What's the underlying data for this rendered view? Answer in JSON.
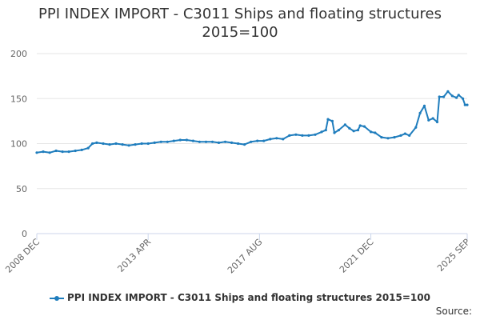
{
  "chart_data": {
    "type": "line",
    "title_line1": "PPI INDEX IMPORT - C3011 Ships and floating structures",
    "title_line2": "2015=100",
    "xlabel": "",
    "ylabel": "",
    "ylim": [
      0,
      200
    ],
    "yticks": [
      0,
      50,
      100,
      150,
      200
    ],
    "x_range": [
      "2008-12",
      "2025-09"
    ],
    "xtick_labels": [
      {
        "date": "2008-12",
        "label": "2008 DEC"
      },
      {
        "date": "2013-04",
        "label": "2013 APR"
      },
      {
        "date": "2017-08",
        "label": "2017 AUG"
      },
      {
        "date": "2021-12",
        "label": "2021 DEC"
      },
      {
        "date": "2025-09",
        "label": "2025 SEP"
      }
    ],
    "grid": "horizontal",
    "legend_position": "bottom",
    "color": "#1f7dbd",
    "series": [
      {
        "name": "PPI INDEX IMPORT - C3011 Ships and floating structures 2015=100",
        "points": [
          [
            "2008-12",
            90
          ],
          [
            "2009-03",
            91
          ],
          [
            "2009-06",
            90
          ],
          [
            "2009-09",
            92
          ],
          [
            "2009-12",
            91
          ],
          [
            "2010-03",
            91
          ],
          [
            "2010-06",
            92
          ],
          [
            "2010-09",
            93
          ],
          [
            "2010-12",
            95
          ],
          [
            "2011-02",
            100
          ],
          [
            "2011-04",
            101
          ],
          [
            "2011-07",
            100
          ],
          [
            "2011-10",
            99
          ],
          [
            "2012-01",
            100
          ],
          [
            "2012-04",
            99
          ],
          [
            "2012-07",
            98
          ],
          [
            "2012-10",
            99
          ],
          [
            "2013-01",
            100
          ],
          [
            "2013-04",
            100
          ],
          [
            "2013-07",
            101
          ],
          [
            "2013-10",
            102
          ],
          [
            "2014-01",
            102
          ],
          [
            "2014-04",
            103
          ],
          [
            "2014-07",
            104
          ],
          [
            "2014-10",
            104
          ],
          [
            "2015-01",
            103
          ],
          [
            "2015-04",
            102
          ],
          [
            "2015-07",
            102
          ],
          [
            "2015-10",
            102
          ],
          [
            "2016-01",
            101
          ],
          [
            "2016-04",
            102
          ],
          [
            "2016-07",
            101
          ],
          [
            "2016-10",
            100
          ],
          [
            "2017-01",
            99
          ],
          [
            "2017-04",
            102
          ],
          [
            "2017-07",
            103
          ],
          [
            "2017-10",
            103
          ],
          [
            "2018-01",
            105
          ],
          [
            "2018-04",
            106
          ],
          [
            "2018-07",
            105
          ],
          [
            "2018-10",
            109
          ],
          [
            "2019-01",
            110
          ],
          [
            "2019-04",
            109
          ],
          [
            "2019-07",
            109
          ],
          [
            "2019-10",
            110
          ],
          [
            "2020-01",
            113
          ],
          [
            "2020-03",
            115
          ],
          [
            "2020-04",
            127
          ],
          [
            "2020-06",
            125
          ],
          [
            "2020-07",
            112
          ],
          [
            "2020-09",
            115
          ],
          [
            "2020-12",
            121
          ],
          [
            "2021-02",
            117
          ],
          [
            "2021-04",
            114
          ],
          [
            "2021-06",
            115
          ],
          [
            "2021-07",
            120
          ],
          [
            "2021-09",
            119
          ],
          [
            "2021-12",
            113
          ],
          [
            "2022-02",
            112
          ],
          [
            "2022-05",
            107
          ],
          [
            "2022-08",
            106
          ],
          [
            "2022-11",
            107
          ],
          [
            "2023-02",
            109
          ],
          [
            "2023-04",
            111
          ],
          [
            "2023-06",
            109
          ],
          [
            "2023-09",
            118
          ],
          [
            "2023-11",
            134
          ],
          [
            "2024-01",
            142
          ],
          [
            "2024-03",
            126
          ],
          [
            "2024-05",
            128
          ],
          [
            "2024-07",
            124
          ],
          [
            "2024-08",
            152
          ],
          [
            "2024-10",
            152
          ],
          [
            "2024-12",
            158
          ],
          [
            "2025-02",
            153
          ],
          [
            "2025-04",
            151
          ],
          [
            "2025-05",
            154
          ],
          [
            "2025-07",
            150
          ],
          [
            "2025-08",
            143
          ],
          [
            "2025-09",
            143
          ]
        ]
      }
    ]
  },
  "footer": {
    "source_label": "Source:"
  }
}
